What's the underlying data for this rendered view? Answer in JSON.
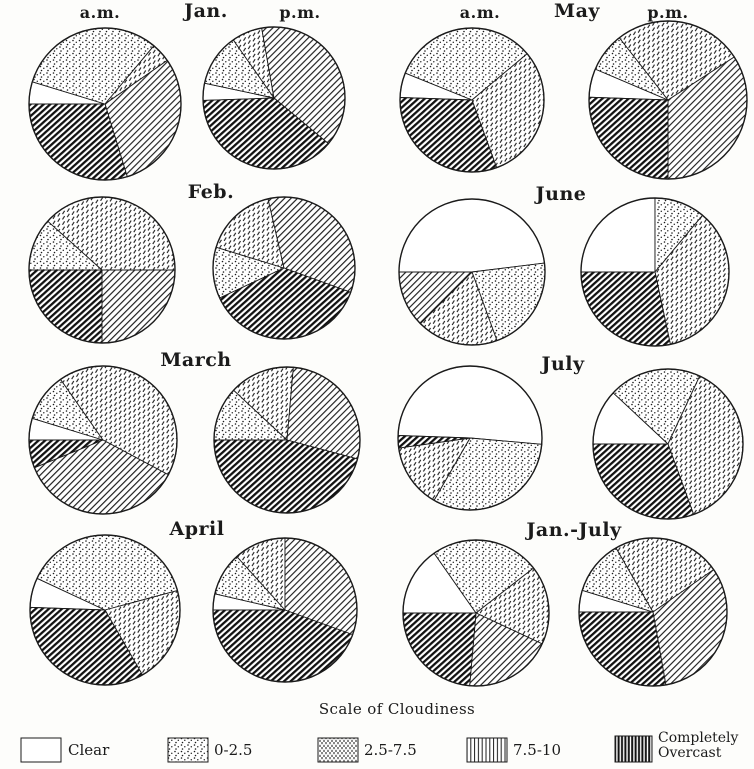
{
  "figure": {
    "column_headers": [
      {
        "am": "a.m.",
        "month": "Jan.",
        "pm": "p.m."
      },
      {
        "am": "a.m.",
        "month": "May",
        "pm": "p.m."
      }
    ],
    "row_labels": [
      "Feb.",
      "June",
      "March",
      "July",
      "April",
      "Jan.-July"
    ]
  },
  "legend": {
    "title": "Scale of Cloudiness",
    "items": [
      {
        "label": "Clear",
        "pattern": "clear"
      },
      {
        "label": "0-2.5",
        "pattern": "dots"
      },
      {
        "label": "2.5-7.5",
        "pattern": "speckle"
      },
      {
        "label": "7.5-10",
        "pattern": "vlines"
      },
      {
        "label": "Completely Overcast",
        "pattern": "vbold"
      }
    ]
  },
  "chart_data": {
    "type": "pie",
    "title": "Scale of Cloudiness",
    "categories": [
      "Clear",
      "0-2.5",
      "2.5-7.5",
      "7.5-10",
      "Completely Overcast"
    ],
    "direction": "clockwise",
    "angle_reference": "degrees clockwise from 12 o'clock",
    "legend_position": "bottom",
    "pies": [
      {
        "label": "Jan. a.m.",
        "month": "Jan.",
        "time": "a.m.",
        "start_deg": 270,
        "values_deg": [
          17,
          113,
          15,
          108,
          107
        ],
        "values_pct": [
          4.7,
          31.4,
          4.2,
          30.0,
          29.7
        ]
      },
      {
        "label": "Jan. p.m.",
        "month": "Jan.",
        "time": "p.m.",
        "start_deg": 268,
        "values_deg": [
          14,
          43,
          25,
          140,
          138
        ],
        "values_pct": [
          3.9,
          11.9,
          6.9,
          38.9,
          38.3
        ]
      },
      {
        "label": "May a.m.",
        "month": "May",
        "time": "a.m.",
        "start_deg": 272,
        "values_deg": [
          20,
          118,
          110,
          0,
          112
        ],
        "values_pct": [
          5.6,
          32.8,
          30.6,
          0,
          31.1
        ]
      },
      {
        "label": "May p.m.",
        "month": "May",
        "time": "p.m.",
        "start_deg": 272,
        "values_deg": [
          21,
          29,
          95,
          123,
          92
        ],
        "values_pct": [
          5.8,
          8.1,
          26.4,
          34.2,
          25.6
        ]
      },
      {
        "label": "Feb. a.m.",
        "month": "Feb.",
        "time": "a.m.",
        "start_deg": 270,
        "values_deg": [
          0,
          42,
          138,
          90,
          90
        ],
        "values_pct": [
          0,
          11.7,
          38.3,
          25.0,
          25.0
        ]
      },
      {
        "label": "Feb. p.m.",
        "month": "Feb.",
        "time": "p.m.",
        "start_deg": 245,
        "values_deg": [
          0,
          42,
          60,
          123,
          135
        ],
        "values_pct": [
          0,
          11.7,
          16.7,
          34.2,
          37.5
        ]
      },
      {
        "label": "June a.m.",
        "month": "June",
        "time": "a.m.",
        "start_deg": 270,
        "values_deg": [
          173,
          77,
          65,
          45,
          0
        ],
        "values_pct": [
          48.1,
          21.4,
          18.1,
          12.5,
          0
        ]
      },
      {
        "label": "June p.m.",
        "month": "June",
        "time": "p.m.",
        "start_deg": 270,
        "values_deg": [
          90,
          40,
          128,
          0,
          102
        ],
        "values_pct": [
          25.0,
          11.1,
          35.6,
          0,
          28.3
        ]
      },
      {
        "label": "March a.m.",
        "month": "March",
        "time": "a.m.",
        "start_deg": 270,
        "values_deg": [
          17,
          38,
          153,
          130,
          22
        ],
        "values_pct": [
          4.7,
          10.6,
          42.5,
          36.1,
          6.1
        ]
      },
      {
        "label": "March p.m.",
        "month": "March",
        "time": "p.m.",
        "start_deg": 270,
        "values_deg": [
          0,
          43,
          52,
          100,
          165
        ],
        "values_pct": [
          0,
          11.9,
          14.4,
          27.8,
          45.8
        ]
      },
      {
        "label": "July a.m.",
        "month": "July",
        "time": "a.m.",
        "start_deg": 272,
        "values_deg": [
          183,
          115,
          52,
          0,
          10
        ],
        "values_pct": [
          50.8,
          31.9,
          14.4,
          0,
          2.8
        ]
      },
      {
        "label": "July p.m.",
        "month": "July",
        "time": "p.m.",
        "start_deg": 270,
        "values_deg": [
          43,
          72,
          135,
          0,
          110
        ],
        "values_pct": [
          11.9,
          20.0,
          37.5,
          0,
          30.6
        ]
      },
      {
        "label": "April a.m.",
        "month": "April",
        "time": "a.m.",
        "start_deg": 272,
        "values_deg": [
          23,
          140,
          75,
          0,
          122
        ],
        "values_pct": [
          6.4,
          38.9,
          20.8,
          0,
          33.9
        ]
      },
      {
        "label": "April p.m.",
        "month": "April",
        "time": "p.m.",
        "start_deg": 270,
        "values_deg": [
          13,
          35,
          42,
          110,
          160
        ],
        "values_pct": [
          3.6,
          9.7,
          11.7,
          30.6,
          44.4
        ]
      },
      {
        "label": "Jan.-July a.m.",
        "month": "Jan.-July",
        "time": "a.m.",
        "start_deg": 270,
        "values_deg": [
          55,
          87,
          63,
          70,
          85
        ],
        "values_pct": [
          15.3,
          24.2,
          17.5,
          19.4,
          23.6
        ]
      },
      {
        "label": "Jan.-July p.m.",
        "month": "Jan.-July",
        "time": "p.m.",
        "start_deg": 270,
        "values_deg": [
          17,
          43,
          85,
          115,
          100
        ],
        "values_pct": [
          4.7,
          11.9,
          23.6,
          31.9,
          27.8
        ]
      }
    ]
  }
}
